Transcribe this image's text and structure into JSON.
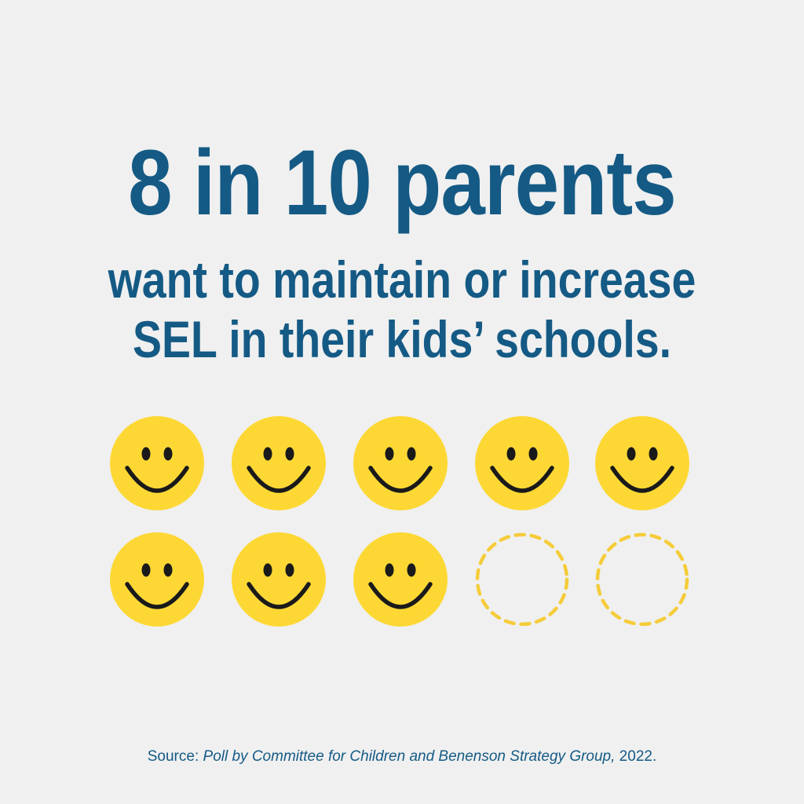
{
  "headline": {
    "main": "8 in 10 parents",
    "line1": "want to maintain or increase",
    "line2": "SEL in their kids’ schools."
  },
  "pictogram": {
    "total": 10,
    "filled": 8,
    "face_color": "#fdd835",
    "feature_color": "#1a1a1a",
    "empty_outline_color": "#f5cc3a",
    "icon_filled": "smiley-face-icon",
    "icon_empty": "dashed-circle-icon"
  },
  "source": {
    "label": "Source: ",
    "citation": "Poll by Committee for Children and Benenson Strategy Group,",
    "year": " 2022."
  },
  "colors": {
    "background": "#f0f0f0",
    "text": "#145a85"
  }
}
